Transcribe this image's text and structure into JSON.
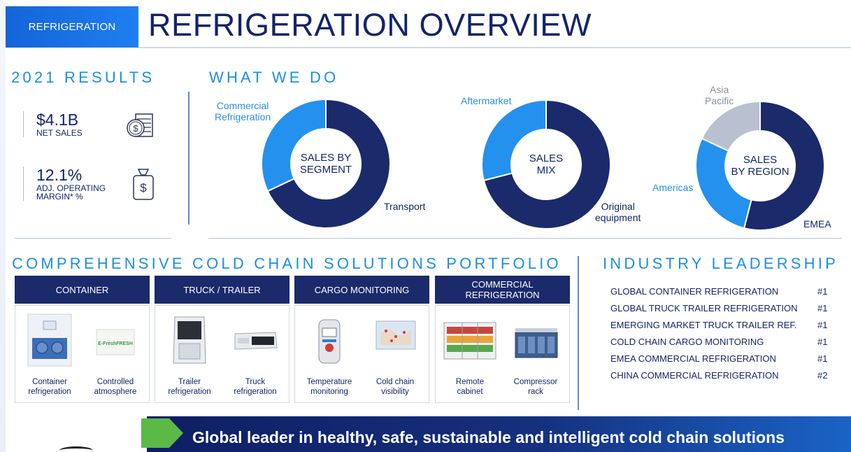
{
  "header": {
    "section_tag": "REFRIGERATION",
    "title": "REFRIGERATION OVERVIEW"
  },
  "results": {
    "heading": "2021 RESULTS",
    "net_sales_value": "$4.1B",
    "net_sales_label": "NET SALES",
    "margin_value": "12.1%",
    "margin_label_1": "ADJ. OPERATING",
    "margin_label_2": "MARGIN* %",
    "icons": [
      "cash-icon",
      "money-bag-icon"
    ]
  },
  "what_we_do": {
    "heading": "WHAT WE DO"
  },
  "chart_data": [
    {
      "type": "pie",
      "title": "SALES BY SEGMENT",
      "center_line_1": "SALES BY",
      "center_line_2": "SEGMENT",
      "categories": [
        "Transport",
        "Commercial Refrigeration"
      ],
      "values": [
        68,
        32
      ],
      "colors": [
        "#1b2a6b",
        "#2491ee"
      ],
      "label_lines": [
        [
          "Transport"
        ],
        [
          "Commercial",
          "Refrigeration"
        ]
      ]
    },
    {
      "type": "pie",
      "title": "SALES MIX",
      "center_line_1": "SALES",
      "center_line_2": "MIX",
      "categories": [
        "Original equipment",
        "Aftermarket"
      ],
      "values": [
        71,
        29
      ],
      "colors": [
        "#1b2a6b",
        "#2491ee"
      ],
      "label_lines": [
        [
          "Original",
          "equipment"
        ],
        [
          "Aftermarket"
        ]
      ]
    },
    {
      "type": "pie",
      "title": "SALES BY REGION",
      "center_line_1": "SALES",
      "center_line_2": "BY REGION",
      "categories": [
        "EMEA",
        "Americas",
        "Asia Pacific"
      ],
      "values": [
        54,
        28,
        18
      ],
      "colors": [
        "#1b2a6b",
        "#2491ee",
        "#b9c0cf"
      ],
      "label_lines": [
        [
          "EMEA"
        ],
        [
          "Americas"
        ],
        [
          "Asia",
          "Pacific"
        ]
      ]
    }
  ],
  "portfolio": {
    "heading": "COMPREHENSIVE COLD CHAIN SOLUTIONS PORTFOLIO",
    "columns": [
      {
        "title_1": "CONTAINER",
        "title_2": "",
        "items": [
          {
            "cap_1": "Container",
            "cap_2": "refrigeration"
          },
          {
            "cap_1": "Controlled",
            "cap_2": "atmosphere"
          }
        ],
        "badge": "E-FreshFRESH"
      },
      {
        "title_1": "TRUCK / TRAILER",
        "title_2": "",
        "items": [
          {
            "cap_1": "Trailer",
            "cap_2": "refrigeration"
          },
          {
            "cap_1": "Truck",
            "cap_2": "refrigeration"
          }
        ]
      },
      {
        "title_1": "CARGO MONITORING",
        "title_2": "",
        "items": [
          {
            "cap_1": "Temperature",
            "cap_2": "monitoring"
          },
          {
            "cap_1": "Cold chain",
            "cap_2": "visibility"
          }
        ]
      },
      {
        "title_1": "COMMERCIAL",
        "title_2": "REFRIGERATION",
        "items": [
          {
            "cap_1": "Remote",
            "cap_2": "cabinet"
          },
          {
            "cap_1": "Compressor",
            "cap_2": "rack"
          }
        ]
      }
    ]
  },
  "leadership": {
    "heading": "INDUSTRY LEADERSHIP",
    "rows": [
      {
        "name": "GLOBAL CONTAINER REFRIGERATION",
        "rank": "#1"
      },
      {
        "name": "GLOBAL TRUCK TRAILER REFRIGERATION",
        "rank": "#1"
      },
      {
        "name": "EMERGING MARKET TRUCK TRAILER REF.",
        "rank": "#1"
      },
      {
        "name": "COLD CHAIN CARGO MONITORING",
        "rank": "#1"
      },
      {
        "name": "EMEA COMMERCIAL REFRIGERATION",
        "rank": "#1"
      },
      {
        "name": "CHINA COMMERCIAL REFRIGERATION",
        "rank": "#2"
      }
    ]
  },
  "banner": {
    "text": "Global leader in healthy, safe, sustainable and intelligent cold chain solutions"
  }
}
